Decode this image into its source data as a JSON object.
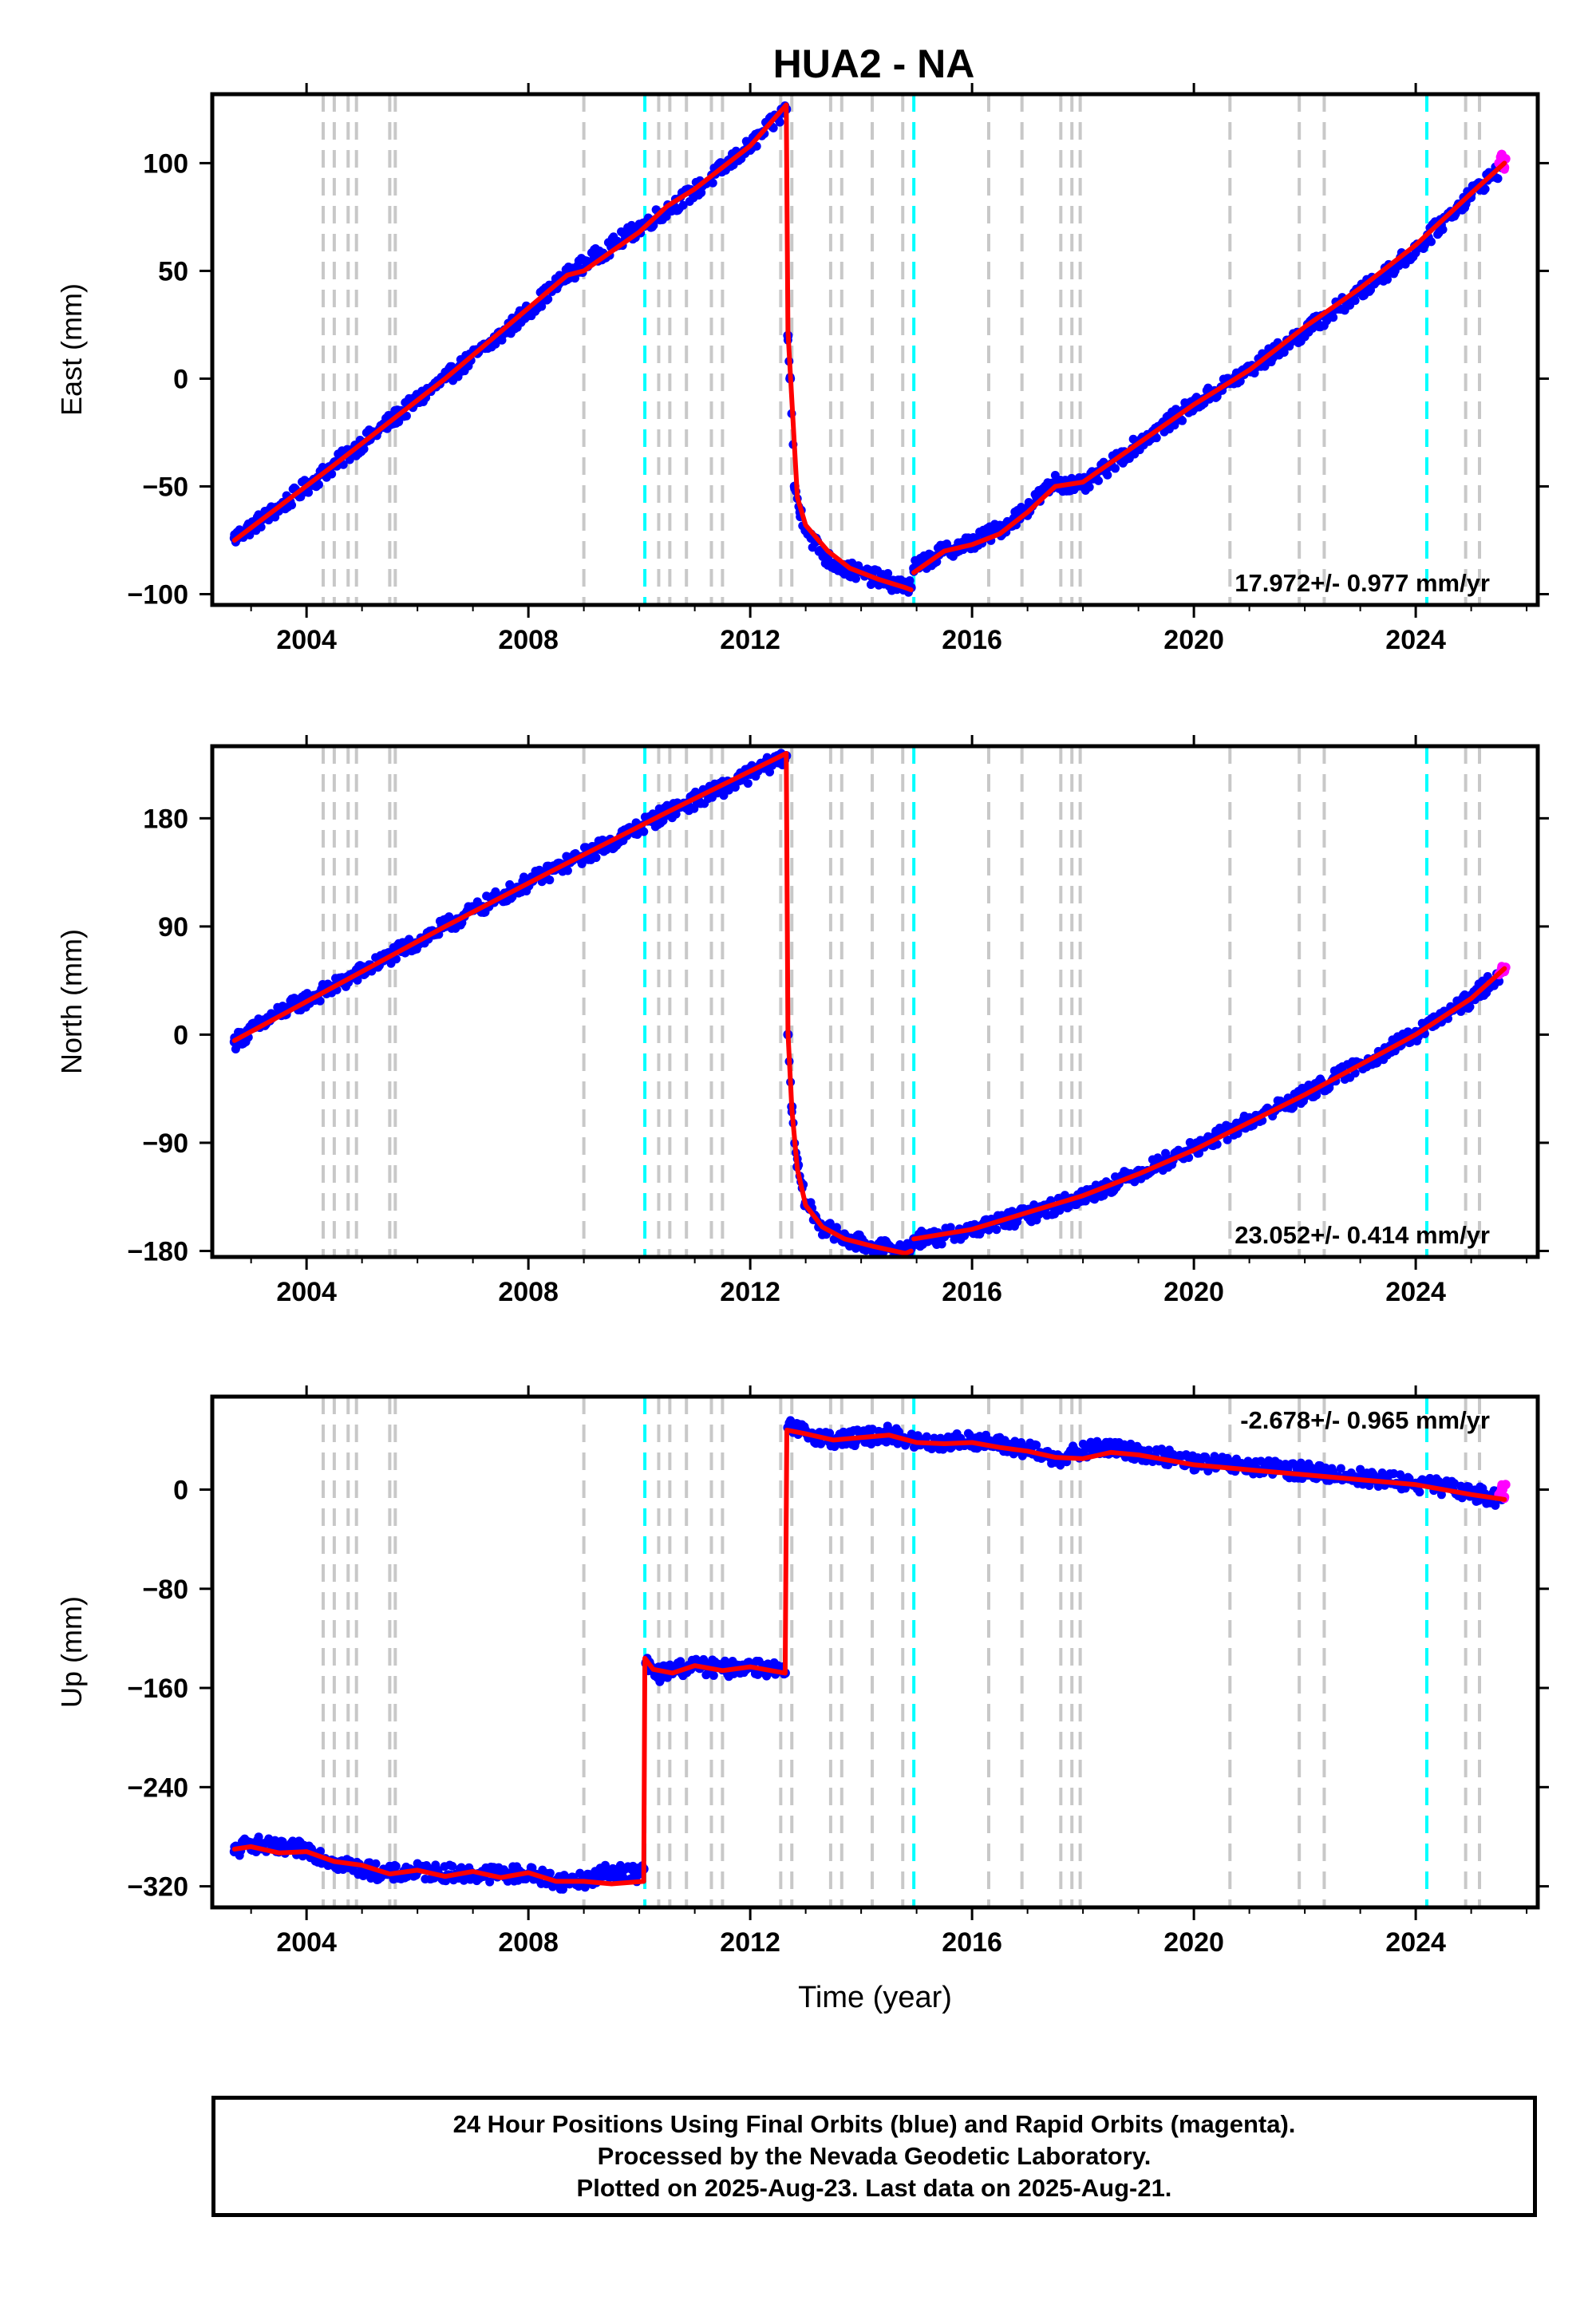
{
  "title": "HUA2 - NA",
  "colors": {
    "final_orbits": "#0000ff",
    "rapid_orbits": "#ff00ff",
    "model": "#ff0000",
    "equipment_change": "#c8c8c8",
    "earthquake": "#00ffff"
  },
  "chart_data": [
    {
      "type": "scatter",
      "panel": "east",
      "title": "HUA2 - NA",
      "ylabel": "East (mm)",
      "xlabel": "",
      "xlim": [
        2002.3,
        2026.2
      ],
      "ylim": [
        -105,
        132
      ],
      "yticks": [
        -100,
        -50,
        0,
        50,
        100
      ],
      "ytick_labels": [
        "−100",
        "−50",
        "0",
        "50",
        "100"
      ],
      "xticks": [
        2004,
        2008,
        2012,
        2016,
        2020,
        2024
      ],
      "xtick_labels": [
        "2004",
        "2008",
        "2012",
        "2016",
        "2020",
        "2024"
      ],
      "rate_label": "17.972+/- 0.977 mm/yr",
      "rate_position": "bottom-right",
      "grid": false,
      "series": [
        {
          "name": "Final Orbits",
          "color": "#0000ff",
          "marker": "dot",
          "segments": [
            {
              "x": [
                2002.7,
                2003.5,
                2004.5,
                2005.5,
                2006.5,
                2007.5,
                2008.7,
                2010.0,
                2011.0,
                2012.0,
                2012.65
              ],
              "y": [
                -74,
                -60,
                -40,
                -20,
                0,
                20,
                48,
                70,
                87,
                108,
                125
              ]
            },
            {
              "x": [
                2012.68,
                2012.72,
                2012.8,
                2012.9,
                2013.1,
                2013.4,
                2013.7,
                2014.2,
                2014.6,
                2014.9
              ],
              "y": [
                20,
                0,
                -50,
                -62,
                -74,
                -84,
                -88,
                -92,
                -95,
                -97
              ]
            },
            {
              "x": [
                2014.95,
                2015.5,
                2016.0,
                2016.5,
                2017.0,
                2017.5,
                2018.0,
                2019.0,
                2020.0,
                2021.0,
                2022.0,
                2023.0,
                2024.0,
                2025.0,
                2025.55
              ],
              "y": [
                -88,
                -80,
                -76,
                -70,
                -60,
                -48,
                -50,
                -30,
                -12,
                4,
                22,
                40,
                60,
                86,
                98
              ]
            }
          ]
        },
        {
          "name": "Rapid Orbits",
          "color": "#ff00ff",
          "marker": "dot",
          "segments": [
            {
              "x": [
                2025.5,
                2025.55,
                2025.6,
                2025.62
              ],
              "y": [
                100,
                104,
                98,
                102
              ]
            }
          ]
        },
        {
          "name": "Model",
          "color": "#ff0000",
          "marker": "line",
          "segments": [
            {
              "x": [
                2002.7,
                2004.5,
                2006.5,
                2008.7,
                2009.0,
                2010.0,
                2010.5,
                2011.0,
                2012.0,
                2012.65
              ],
              "y": [
                -75,
                -40,
                0,
                48,
                50,
                68,
                80,
                88,
                108,
                127
              ]
            },
            {
              "x": [
                2012.65,
                2012.68,
                2012.75,
                2012.85,
                2013.0,
                2013.4,
                2013.8,
                2014.3,
                2014.8,
                2014.9
              ],
              "y": [
                127,
                22,
                -10,
                -55,
                -68,
                -80,
                -88,
                -93,
                -97,
                -98
              ]
            },
            {
              "x": [
                2014.95,
                2015.5,
                2016.0,
                2016.5,
                2017.0,
                2017.5,
                2018.0,
                2019.0,
                2020.0,
                2021.0,
                2022.0,
                2023.0,
                2024.0,
                2025.0,
                2025.6
              ],
              "y": [
                -90,
                -80,
                -77,
                -72,
                -62,
                -50,
                -48,
                -30,
                -12,
                4,
                24,
                42,
                62,
                86,
                100
              ]
            }
          ]
        }
      ]
    },
    {
      "type": "scatter",
      "panel": "north",
      "ylabel": "North (mm)",
      "xlabel": "",
      "xlim": [
        2002.3,
        2026.2
      ],
      "ylim": [
        -185,
        240
      ],
      "yticks": [
        -180,
        -90,
        0,
        90,
        180
      ],
      "ytick_labels": [
        "−180",
        "−90",
        "0",
        "90",
        "180"
      ],
      "xticks": [
        2004,
        2008,
        2012,
        2016,
        2020,
        2024
      ],
      "xtick_labels": [
        "2004",
        "2008",
        "2012",
        "2016",
        "2020",
        "2024"
      ],
      "rate_label": "23.052+/- 0.414 mm/yr",
      "rate_position": "bottom-right",
      "grid": false,
      "series": [
        {
          "name": "Final Orbits",
          "color": "#0000ff",
          "marker": "dot",
          "segments": [
            {
              "x": [
                2002.7,
                2003.5,
                2004.5,
                2005.5,
                2006.5,
                2007.5,
                2008.5,
                2009.5,
                2010.5,
                2011.5,
                2012.65
              ],
              "y": [
                -6,
                18,
                40,
                65,
                90,
                115,
                138,
                160,
                185,
                205,
                232
              ]
            },
            {
              "x": [
                2012.68,
                2012.75,
                2012.85,
                2013.0,
                2013.3,
                2013.7,
                2014.2,
                2014.7,
                2014.9
              ],
              "y": [
                0,
                -60,
                -110,
                -140,
                -160,
                -170,
                -176,
                -180,
                -178
              ]
            },
            {
              "x": [
                2014.95,
                2015.5,
                2016.0,
                2017.0,
                2018.0,
                2019.0,
                2020.0,
                2021.0,
                2022.0,
                2023.0,
                2024.0,
                2025.0,
                2025.55
              ],
              "y": [
                -170,
                -168,
                -162,
                -150,
                -135,
                -115,
                -95,
                -72,
                -50,
                -25,
                0,
                30,
                52
              ]
            }
          ]
        },
        {
          "name": "Rapid Orbits",
          "color": "#ff00ff",
          "marker": "dot",
          "segments": [
            {
              "x": [
                2025.5,
                2025.55,
                2025.6,
                2025.62
              ],
              "y": [
                50,
                55,
                53,
                56
              ]
            }
          ]
        },
        {
          "name": "Model",
          "color": "#ff0000",
          "marker": "line",
          "segments": [
            {
              "x": [
                2002.7,
                2004.5,
                2006.5,
                2008.5,
                2010.5,
                2012.65
              ],
              "y": [
                -5,
                40,
                90,
                138,
                185,
                234
              ]
            },
            {
              "x": [
                2012.65,
                2012.68,
                2012.75,
                2012.85,
                2013.0,
                2013.3,
                2013.7,
                2014.2,
                2014.8,
                2014.9
              ],
              "y": [
                234,
                2,
                -62,
                -112,
                -142,
                -160,
                -170,
                -176,
                -182,
                -180
              ]
            },
            {
              "x": [
                2014.95,
                2016.0,
                2017.0,
                2018.0,
                2019.0,
                2020.0,
                2021.0,
                2022.0,
                2023.0,
                2024.0,
                2025.0,
                2025.6
              ],
              "y": [
                -170,
                -162,
                -148,
                -134,
                -116,
                -96,
                -73,
                -50,
                -25,
                0,
                30,
                55
              ]
            }
          ]
        }
      ]
    },
    {
      "type": "scatter",
      "panel": "up",
      "ylabel": "Up (mm)",
      "xlabel": "Time (year)",
      "xlim": [
        2002.3,
        2026.2
      ],
      "ylim": [
        -337,
        75
      ],
      "yticks": [
        -320,
        -240,
        -160,
        -80,
        0
      ],
      "ytick_labels": [
        "−320",
        "−240",
        "−160",
        "−80",
        "0"
      ],
      "xticks": [
        2004,
        2008,
        2012,
        2016,
        2020,
        2024
      ],
      "xtick_labels": [
        "2004",
        "2008",
        "2012",
        "2016",
        "2020",
        "2024"
      ],
      "rate_label": "-2.678+/- 0.965 mm/yr",
      "rate_position": "top-right",
      "grid": false,
      "series": [
        {
          "name": "Final Orbits",
          "color": "#0000ff",
          "marker": "dot",
          "segments": [
            {
              "x": [
                2002.7,
                2003.0,
                2003.5,
                2004.0,
                2004.5,
                2005.0,
                2005.5,
                2006.0,
                2007.0,
                2008.0,
                2008.6,
                2009.0,
                2009.5,
                2010.0,
                2010.08
              ],
              "y": [
                -292,
                -285,
                -290,
                -290,
                -300,
                -306,
                -310,
                -308,
                -310,
                -310,
                -316,
                -315,
                -308,
                -310,
                -306
              ]
            },
            {
              "x": [
                2010.12,
                2010.3,
                2010.6,
                2011.0,
                2011.5,
                2012.0,
                2012.5,
                2012.63
              ],
              "y": [
                -140,
                -150,
                -145,
                -142,
                -145,
                -142,
                -146,
                -148
              ]
            },
            {
              "x": [
                2012.68,
                2013.0,
                2013.5,
                2014.0,
                2014.5,
                2015.0,
                2015.5,
                2016.0,
                2016.5,
                2017.0,
                2017.5,
                2018.3,
                2019.0,
                2020.0,
                2021.0,
                2022.0,
                2023.0,
                2024.0,
                2025.0,
                2025.55
              ],
              "y": [
                50,
                46,
                40,
                42,
                45,
                38,
                38,
                40,
                36,
                32,
                25,
                34,
                30,
                22,
                18,
                15,
                10,
                5,
                -2,
                -8
              ]
            }
          ]
        },
        {
          "name": "Rapid Orbits",
          "color": "#ff00ff",
          "marker": "dot",
          "segments": [
            {
              "x": [
                2025.5,
                2025.55,
                2025.6,
                2025.62
              ],
              "y": [
                -4,
                2,
                -6,
                4
              ]
            }
          ]
        },
        {
          "name": "Model",
          "color": "#ff0000",
          "marker": "line",
          "segments": [
            {
              "x": [
                2002.7,
                2003.0,
                2003.5,
                2004.0,
                2004.5,
                2005.0,
                2005.5,
                2006.0,
                2006.5,
                2007.0,
                2007.5,
                2008.0,
                2008.5,
                2009.0,
                2009.5,
                2010.08
              ],
              "y": [
                -290,
                -288,
                -293,
                -292,
                -300,
                -303,
                -310,
                -307,
                -312,
                -308,
                -313,
                -309,
                -316,
                -316,
                -318,
                -316
              ]
            },
            {
              "x": [
                2010.08,
                2010.1,
                2010.25,
                2010.6,
                2011.0,
                2011.5,
                2012.0,
                2012.63
              ],
              "y": [
                -316,
                -136,
                -145,
                -148,
                -142,
                -146,
                -143,
                -148
              ]
            },
            {
              "x": [
                2012.63,
                2012.66,
                2013.0,
                2013.5,
                2014.0,
                2014.5,
                2015.0,
                2015.5,
                2016.0,
                2016.5,
                2017.0,
                2017.5,
                2018.0,
                2018.5,
                2019.0,
                2019.5,
                2020.0,
                2021.0,
                2022.0,
                2023.0,
                2024.0,
                2025.0,
                2025.6
              ],
              "y": [
                -148,
                48,
                45,
                40,
                42,
                44,
                38,
                37,
                38,
                34,
                31,
                26,
                25,
                30,
                28,
                24,
                20,
                16,
                12,
                8,
                4,
                -4,
                -8
              ]
            }
          ]
        }
      ]
    }
  ],
  "reference_lines": {
    "equipment_changes_gray": [
      2004.3,
      2004.5,
      2004.75,
      2004.9,
      2005.5,
      2005.6,
      2009.0,
      2010.35,
      2010.55,
      2010.85,
      2011.3,
      2011.5,
      2012.55,
      2012.75,
      2013.45,
      2013.65,
      2014.2,
      2014.75,
      2016.3,
      2016.9,
      2017.6,
      2017.8,
      2017.95,
      2020.65,
      2021.9,
      2022.35,
      2024.9,
      2025.15
    ],
    "earthquakes_cyan": [
      2010.1,
      2014.95,
      2024.2
    ]
  },
  "footer": {
    "line1": "24 Hour Positions Using Final Orbits (blue) and Rapid Orbits (magenta).",
    "line2": "Processed by the Nevada Geodetic Laboratory.",
    "line3": "Plotted on 2025-Aug-23. Last data on 2025-Aug-21."
  }
}
